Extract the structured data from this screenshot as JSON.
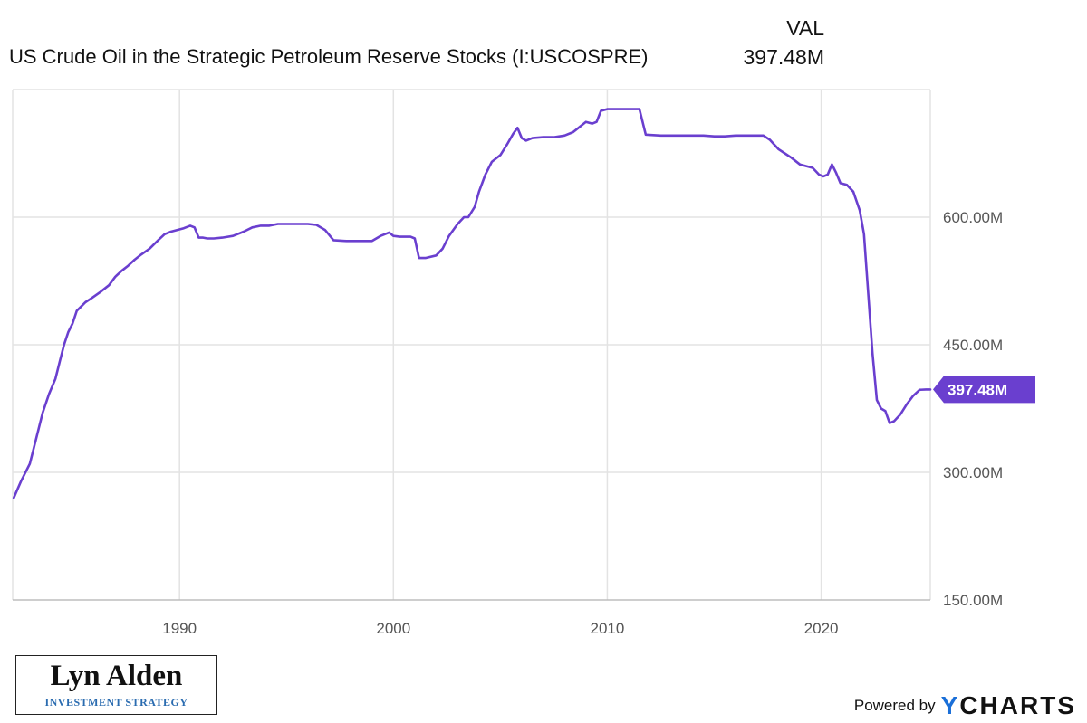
{
  "header": {
    "title": "US Crude Oil in the Strategic Petroleum Reserve Stocks (I:USCOSPRE)",
    "val_label": "VAL",
    "val_value": "397.48M"
  },
  "chart_data": {
    "type": "line",
    "title": "US Crude Oil in the Strategic Petroleum Reserve Stocks (I:USCOSPRE)",
    "xlabel": "",
    "ylabel": "",
    "xlim": [
      1982.2,
      2025.1
    ],
    "ylim": [
      150,
      750
    ],
    "x_ticks": [
      1990,
      2000,
      2010,
      2020
    ],
    "x_tick_labels": [
      "1990",
      "2000",
      "2010",
      "2020"
    ],
    "y_ticks": [
      150,
      300,
      450,
      600
    ],
    "y_tick_labels": [
      "150.00M",
      "300.00M",
      "450.00M",
      "600.00M"
    ],
    "grid": true,
    "color": "#6a3fcf",
    "last_value_label": "397.48M",
    "series": [
      {
        "name": "VAL",
        "x": [
          1982.25,
          1982.6,
          1983.0,
          1983.3,
          1983.6,
          1983.9,
          1984.2,
          1984.4,
          1984.6,
          1984.8,
          1985.0,
          1985.2,
          1985.4,
          1985.6,
          1985.9,
          1986.3,
          1986.7,
          1987.0,
          1987.3,
          1987.6,
          1987.9,
          1988.2,
          1988.6,
          1989.0,
          1989.3,
          1989.6,
          1989.9,
          1990.2,
          1990.5,
          1990.7,
          1990.9,
          1991.1,
          1991.3,
          1991.6,
          1992.0,
          1992.5,
          1993.0,
          1993.4,
          1993.8,
          1994.2,
          1994.6,
          1995.0,
          1995.5,
          1996.0,
          1996.4,
          1996.8,
          1997.2,
          1997.8,
          1998.5,
          1999.0,
          1999.4,
          1999.8,
          2000.0,
          2000.3,
          2000.8,
          2001.0,
          2001.2,
          2001.5,
          2002.0,
          2002.3,
          2002.6,
          2003.0,
          2003.3,
          2003.5,
          2003.8,
          2004.0,
          2004.3,
          2004.6,
          2005.0,
          2005.3,
          2005.6,
          2005.8,
          2006.0,
          2006.2,
          2006.5,
          2007.0,
          2007.5,
          2008.0,
          2008.4,
          2008.8,
          2009.0,
          2009.3,
          2009.5,
          2009.7,
          2010.0,
          2010.5,
          2011.0,
          2011.3,
          2011.5,
          2011.8,
          2012.5,
          2013.0,
          2013.5,
          2014.0,
          2014.5,
          2015.0,
          2015.5,
          2016.0,
          2016.5,
          2017.0,
          2017.3,
          2017.6,
          2018.0,
          2018.3,
          2018.6,
          2019.0,
          2019.3,
          2019.6,
          2019.9,
          2020.1,
          2020.3,
          2020.5,
          2020.7,
          2020.9,
          2021.2,
          2021.5,
          2021.8,
          2022.0,
          2022.2,
          2022.4,
          2022.6,
          2022.8,
          2023.0,
          2023.2,
          2023.4,
          2023.7,
          2024.0,
          2024.3,
          2024.6,
          2024.9,
          2025.1
        ],
        "values": [
          270,
          290,
          310,
          340,
          370,
          392,
          410,
          430,
          450,
          465,
          475,
          490,
          495,
          500,
          505,
          512,
          520,
          530,
          537,
          543,
          550,
          556,
          563,
          573,
          580,
          583,
          585,
          587,
          590,
          588,
          576,
          576,
          575,
          575,
          576,
          578,
          583,
          588,
          590,
          590,
          592,
          592,
          592,
          592,
          591,
          585,
          573,
          572,
          572,
          572,
          578,
          582,
          578,
          577,
          577,
          575,
          552,
          552,
          555,
          563,
          578,
          592,
          600,
          600,
          612,
          630,
          650,
          665,
          673,
          685,
          698,
          705,
          693,
          690,
          693,
          694,
          694,
          696,
          700,
          708,
          712,
          710,
          712,
          725,
          727,
          727,
          727,
          727,
          727,
          697,
          696,
          696,
          696,
          696,
          696,
          695,
          695,
          696,
          696,
          696,
          696,
          691,
          680,
          675,
          670,
          662,
          660,
          658,
          650,
          648,
          650,
          662,
          652,
          640,
          638,
          630,
          608,
          580,
          510,
          440,
          385,
          375,
          372,
          358,
          360,
          368,
          380,
          390,
          397,
          397.48,
          397.48
        ]
      }
    ]
  },
  "branding": {
    "logo_name": "Lyn Alden",
    "logo_sub": "INVESTMENT STRATEGY",
    "powered_by": "Powered by",
    "ycharts_y": "Y",
    "ycharts_rest": "CHARTS"
  }
}
